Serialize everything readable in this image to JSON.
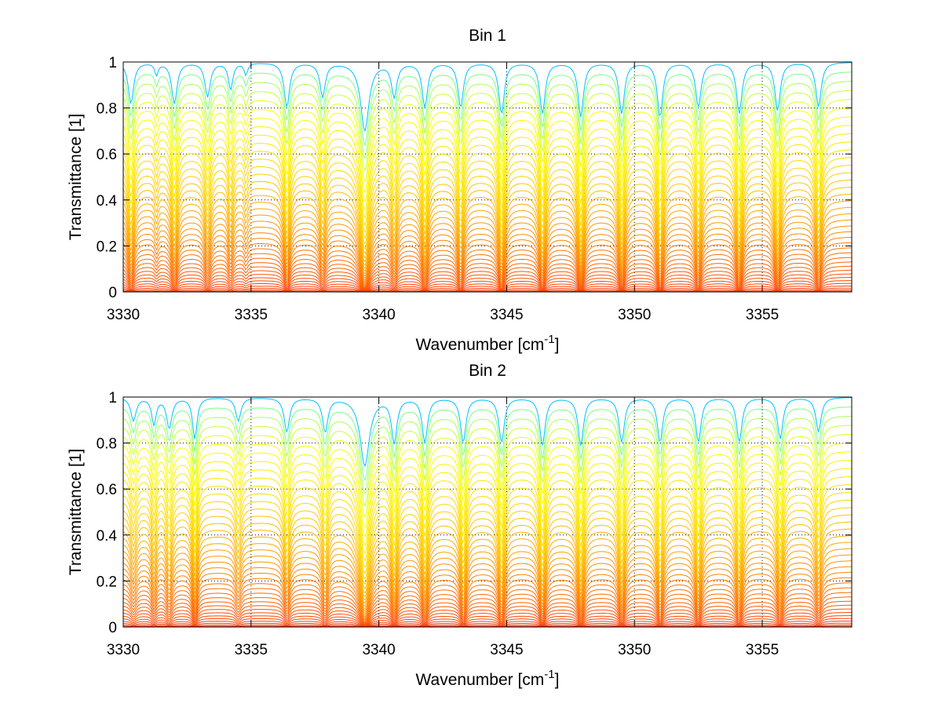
{
  "chart_data": [
    {
      "type": "line",
      "title": "Bin 1",
      "xlabel": "Wavenumber",
      "xlabel_unit": "cm",
      "xlabel_unit_exp": "-1",
      "xlabel_open": "[",
      "xlabel_close": "]",
      "ylabel": "Transmittance [1]",
      "xlim": [
        3330,
        3358.5
      ],
      "ylim": [
        0,
        1
      ],
      "xticks": [
        "3330",
        "3335",
        "3340",
        "3345",
        "3350",
        "3355"
      ],
      "yticks": [
        "0",
        "0.2",
        "0.4",
        "0.6",
        "0.8",
        "1"
      ],
      "grid": "dotted",
      "n_curves": 40,
      "colormap": [
        "#ff2a00",
        "#ff7f00",
        "#ffd200",
        "#ffff00",
        "#80ff80",
        "#00c0ff"
      ],
      "absorption_lines": [
        {
          "x": 3330.3,
          "depth": 0.55,
          "width": 0.12
        },
        {
          "x": 3331.3,
          "depth": 0.15,
          "width": 0.08
        },
        {
          "x": 3332.0,
          "depth": 0.55,
          "width": 0.12
        },
        {
          "x": 3333.3,
          "depth": 0.45,
          "width": 0.12
        },
        {
          "x": 3334.2,
          "depth": 0.35,
          "width": 0.1
        },
        {
          "x": 3334.8,
          "depth": 0.15,
          "width": 0.08
        },
        {
          "x": 3336.4,
          "depth": 0.6,
          "width": 0.12
        },
        {
          "x": 3337.8,
          "depth": 0.45,
          "width": 0.12
        },
        {
          "x": 3339.45,
          "depth": 0.98,
          "width": 0.18
        },
        {
          "x": 3340.6,
          "depth": 0.45,
          "width": 0.12
        },
        {
          "x": 3341.8,
          "depth": 0.6,
          "width": 0.12
        },
        {
          "x": 3343.2,
          "depth": 0.6,
          "width": 0.12
        },
        {
          "x": 3344.8,
          "depth": 0.7,
          "width": 0.12
        },
        {
          "x": 3346.4,
          "depth": 0.7,
          "width": 0.12
        },
        {
          "x": 3347.9,
          "depth": 0.75,
          "width": 0.12
        },
        {
          "x": 3349.5,
          "depth": 0.7,
          "width": 0.12
        },
        {
          "x": 3351.0,
          "depth": 0.75,
          "width": 0.12
        },
        {
          "x": 3352.5,
          "depth": 0.6,
          "width": 0.12
        },
        {
          "x": 3354.1,
          "depth": 0.7,
          "width": 0.12
        },
        {
          "x": 3355.6,
          "depth": 0.65,
          "width": 0.12
        },
        {
          "x": 3357.2,
          "depth": 0.6,
          "width": 0.12
        }
      ]
    },
    {
      "type": "line",
      "title": "Bin 2",
      "xlabel": "Wavenumber",
      "xlabel_unit": "cm",
      "xlabel_unit_exp": "-1",
      "xlabel_open": "[",
      "xlabel_close": "]",
      "ylabel": "Transmittance [1]",
      "xlim": [
        3330,
        3358.5
      ],
      "ylim": [
        0,
        1
      ],
      "xticks": [
        "3330",
        "3335",
        "3340",
        "3345",
        "3350",
        "3355"
      ],
      "yticks": [
        "0",
        "0.2",
        "0.4",
        "0.6",
        "0.8",
        "1"
      ],
      "grid": "dotted",
      "n_curves": 40,
      "colormap": [
        "#ff2a00",
        "#ff7f00",
        "#ffd200",
        "#ffff00",
        "#80ff80",
        "#00c0ff"
      ],
      "absorption_lines": [
        {
          "x": 3330.4,
          "depth": 0.3,
          "width": 0.12
        },
        {
          "x": 3331.2,
          "depth": 0.35,
          "width": 0.1
        },
        {
          "x": 3331.8,
          "depth": 0.4,
          "width": 0.12
        },
        {
          "x": 3332.8,
          "depth": 0.55,
          "width": 0.1
        },
        {
          "x": 3334.5,
          "depth": 0.3,
          "width": 0.12
        },
        {
          "x": 3336.4,
          "depth": 0.45,
          "width": 0.12
        },
        {
          "x": 3337.9,
          "depth": 0.45,
          "width": 0.12
        },
        {
          "x": 3339.45,
          "depth": 0.98,
          "width": 0.2
        },
        {
          "x": 3340.6,
          "depth": 0.6,
          "width": 0.12
        },
        {
          "x": 3341.8,
          "depth": 0.6,
          "width": 0.12
        },
        {
          "x": 3343.3,
          "depth": 0.6,
          "width": 0.12
        },
        {
          "x": 3344.8,
          "depth": 0.6,
          "width": 0.12
        },
        {
          "x": 3346.4,
          "depth": 0.65,
          "width": 0.12
        },
        {
          "x": 3347.9,
          "depth": 0.65,
          "width": 0.12
        },
        {
          "x": 3349.5,
          "depth": 0.6,
          "width": 0.12
        },
        {
          "x": 3351.0,
          "depth": 0.6,
          "width": 0.12
        },
        {
          "x": 3352.5,
          "depth": 0.6,
          "width": 0.12
        },
        {
          "x": 3354.1,
          "depth": 0.6,
          "width": 0.12
        },
        {
          "x": 3355.7,
          "depth": 0.55,
          "width": 0.12
        },
        {
          "x": 3357.2,
          "depth": 0.45,
          "width": 0.12
        }
      ]
    }
  ]
}
